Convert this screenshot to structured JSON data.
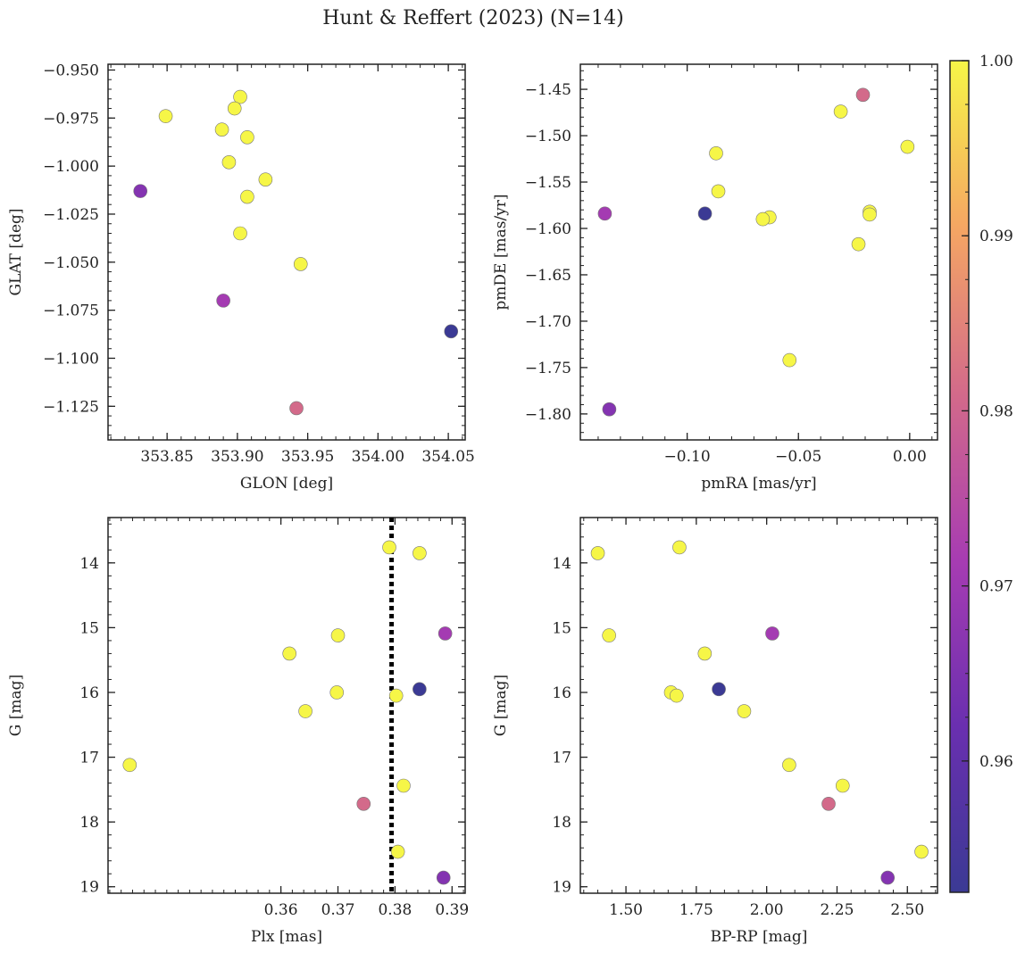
{
  "figure": {
    "title": "Hunt & Reffert (2023) (N=14)"
  },
  "colorbar": {
    "ticks": [
      "0.96",
      "0.97",
      "0.98",
      "0.99",
      "1.00"
    ],
    "range": [
      0.9525,
      1.0
    ],
    "colormap": "plasma"
  },
  "chart_data": [
    {
      "type": "scatter",
      "xlabel": "GLON [deg]",
      "ylabel": "GLAT [deg]",
      "xlim": [
        353.808,
        354.062
      ],
      "ylim": [
        -1.1425,
        -0.947
      ],
      "y_inverted": false,
      "xticks": [
        "353.85",
        "353.90",
        "353.95",
        "354.00",
        "354.05"
      ],
      "yticks": [
        "−0.950",
        "−0.975",
        "−1.000",
        "−1.025",
        "−1.050",
        "−1.075",
        "−1.100",
        "−1.125"
      ],
      "points": [
        {
          "x": 353.849,
          "y": -0.974,
          "c": 1.0
        },
        {
          "x": 353.902,
          "y": -0.964,
          "c": 1.0
        },
        {
          "x": 353.898,
          "y": -0.97,
          "c": 1.0
        },
        {
          "x": 353.889,
          "y": -0.981,
          "c": 1.0
        },
        {
          "x": 353.907,
          "y": -0.985,
          "c": 1.0
        },
        {
          "x": 353.894,
          "y": -0.998,
          "c": 1.0
        },
        {
          "x": 353.92,
          "y": -1.007,
          "c": 1.0
        },
        {
          "x": 353.907,
          "y": -1.016,
          "c": 1.0
        },
        {
          "x": 353.902,
          "y": -1.035,
          "c": 1.0
        },
        {
          "x": 353.945,
          "y": -1.051,
          "c": 1.0
        },
        {
          "x": 353.831,
          "y": -1.013,
          "c": 0.966
        },
        {
          "x": 353.89,
          "y": -1.07,
          "c": 0.971
        },
        {
          "x": 353.942,
          "y": -1.126,
          "c": 0.981
        },
        {
          "x": 354.052,
          "y": -1.086,
          "c": 0.9525
        }
      ]
    },
    {
      "type": "scatter",
      "xlabel": "pmRA [mas/yr]",
      "ylabel": "pmDE [mas/yr]",
      "xlim": [
        -0.148,
        0.0125
      ],
      "ylim": [
        -1.828,
        -1.423
      ],
      "y_inverted": false,
      "xticks": [
        "−0.10",
        "−0.05",
        "0.00"
      ],
      "yticks": [
        "−1.45",
        "−1.50",
        "−1.55",
        "−1.60",
        "−1.65",
        "−1.70",
        "−1.75",
        "−1.80"
      ],
      "points": [
        {
          "x": -0.021,
          "y": -1.456,
          "c": 0.981
        },
        {
          "x": -0.031,
          "y": -1.474,
          "c": 1.0
        },
        {
          "x": -0.001,
          "y": -1.512,
          "c": 1.0
        },
        {
          "x": -0.087,
          "y": -1.519,
          "c": 1.0
        },
        {
          "x": -0.086,
          "y": -1.56,
          "c": 1.0
        },
        {
          "x": -0.018,
          "y": -1.582,
          "c": 1.0
        },
        {
          "x": -0.018,
          "y": -1.585,
          "c": 1.0
        },
        {
          "x": -0.063,
          "y": -1.588,
          "c": 1.0
        },
        {
          "x": -0.066,
          "y": -1.59,
          "c": 1.0
        },
        {
          "x": -0.023,
          "y": -1.617,
          "c": 1.0
        },
        {
          "x": -0.054,
          "y": -1.742,
          "c": 1.0
        },
        {
          "x": -0.137,
          "y": -1.584,
          "c": 0.971
        },
        {
          "x": -0.092,
          "y": -1.584,
          "c": 0.9525
        },
        {
          "x": -0.135,
          "y": -1.795,
          "c": 0.966
        }
      ]
    },
    {
      "type": "scatter",
      "xlabel": "Plx [mas]",
      "ylabel": "G [mag]",
      "xlim": [
        0.3297,
        0.3923
      ],
      "ylim": [
        19.1,
        13.3
      ],
      "y_inverted": true,
      "vline": 0.3794,
      "xticks": [
        "0.36",
        "0.37",
        "0.38",
        "0.39"
      ],
      "yticks": [
        "14",
        "15",
        "16",
        "17",
        "18",
        "19"
      ],
      "points": [
        {
          "x": 0.379,
          "y": 13.76,
          "c": 1.0
        },
        {
          "x": 0.3843,
          "y": 13.85,
          "c": 1.0
        },
        {
          "x": 0.37,
          "y": 15.12,
          "c": 1.0
        },
        {
          "x": 0.3615,
          "y": 15.4,
          "c": 1.0
        },
        {
          "x": 0.3698,
          "y": 16.0,
          "c": 1.0
        },
        {
          "x": 0.3802,
          "y": 16.05,
          "c": 1.0
        },
        {
          "x": 0.3643,
          "y": 16.29,
          "c": 1.0
        },
        {
          "x": 0.3335,
          "y": 17.12,
          "c": 1.0
        },
        {
          "x": 0.3815,
          "y": 17.44,
          "c": 1.0
        },
        {
          "x": 0.3805,
          "y": 18.46,
          "c": 1.0
        },
        {
          "x": 0.3745,
          "y": 17.72,
          "c": 0.981
        },
        {
          "x": 0.3888,
          "y": 15.09,
          "c": 0.971
        },
        {
          "x": 0.3843,
          "y": 15.95,
          "c": 0.9525
        },
        {
          "x": 0.3885,
          "y": 18.86,
          "c": 0.966
        }
      ]
    },
    {
      "type": "scatter",
      "xlabel": "BP-RP [mag]",
      "ylabel": "G [mag]",
      "xlim": [
        1.338,
        2.607
      ],
      "ylim": [
        19.1,
        13.3
      ],
      "y_inverted": true,
      "xticks": [
        "1.50",
        "1.75",
        "2.00",
        "2.25",
        "2.50"
      ],
      "yticks": [
        "14",
        "15",
        "16",
        "17",
        "18",
        "19"
      ],
      "points": [
        {
          "x": 1.4,
          "y": 13.85,
          "c": 1.0
        },
        {
          "x": 1.69,
          "y": 13.76,
          "c": 1.0
        },
        {
          "x": 1.44,
          "y": 15.12,
          "c": 1.0
        },
        {
          "x": 1.78,
          "y": 15.4,
          "c": 1.0
        },
        {
          "x": 1.66,
          "y": 16.0,
          "c": 1.0
        },
        {
          "x": 1.68,
          "y": 16.05,
          "c": 1.0
        },
        {
          "x": 1.92,
          "y": 16.29,
          "c": 1.0
        },
        {
          "x": 2.08,
          "y": 17.12,
          "c": 1.0
        },
        {
          "x": 2.27,
          "y": 17.44,
          "c": 1.0
        },
        {
          "x": 2.55,
          "y": 18.46,
          "c": 1.0
        },
        {
          "x": 2.22,
          "y": 17.72,
          "c": 0.981
        },
        {
          "x": 2.02,
          "y": 15.09,
          "c": 0.971
        },
        {
          "x": 1.83,
          "y": 15.95,
          "c": 0.9525
        },
        {
          "x": 2.43,
          "y": 18.86,
          "c": 0.966
        }
      ]
    }
  ]
}
